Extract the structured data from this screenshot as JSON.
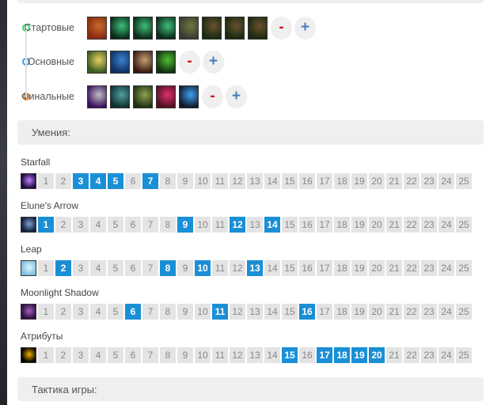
{
  "colors": {
    "accent": "#1a8fd6",
    "minus": "#d0151b",
    "plus": "#4a7cbf",
    "start": "#3fcf6a",
    "core": "#3a9be8",
    "final": "#f08a30"
  },
  "items": {
    "rows": [
      {
        "label": "Стартовые",
        "dot": "#3fcf6a",
        "icons": [
          [
            "#8a2a10",
            "#c56a2a"
          ],
          [
            "#0a2a1a",
            "#3fbf7a"
          ],
          [
            "#0a2a1a",
            "#3fbf7a"
          ],
          [
            "#0a2a1a",
            "#3fbf7a"
          ],
          [
            "#3a3a30",
            "#6a7a40"
          ],
          [
            "#1a2a10",
            "#6a5030"
          ],
          [
            "#1a2a10",
            "#6a5030"
          ],
          [
            "#1a2a10",
            "#6a5030"
          ]
        ]
      },
      {
        "label": "Основные",
        "dot": "#3a9be8",
        "icons": [
          [
            "#3a5a20",
            "#e8d060"
          ],
          [
            "#103060",
            "#3a80d0"
          ],
          [
            "#3a1a10",
            "#c0a070"
          ],
          [
            "#103010",
            "#50c030"
          ]
        ]
      },
      {
        "label": "Финальные",
        "dot": "#f08a30",
        "icons": [
          [
            "#3a1060",
            "#c0c0c0"
          ],
          [
            "#103030",
            "#50a0a0"
          ],
          [
            "#203010",
            "#90a050"
          ],
          [
            "#501020",
            "#e03070"
          ],
          [
            "#101830",
            "#40a0f0"
          ]
        ]
      }
    ],
    "minus_label": "-",
    "plus_label": "+"
  },
  "skills_header": "Умения:",
  "skills": [
    {
      "name": "Starfall",
      "icon": [
        "#200a40",
        "#c080ff"
      ],
      "levels": [
        3,
        4,
        5,
        7
      ]
    },
    {
      "name": "Elune's Arrow",
      "icon": [
        "#102040",
        "#80a0d0"
      ],
      "levels": [
        1,
        9,
        12,
        14
      ]
    },
    {
      "name": "Leap",
      "icon": [
        "#80c0e0",
        "#e0f4ff"
      ],
      "levels": [
        2,
        8,
        10,
        13
      ]
    },
    {
      "name": "Moonlight Shadow",
      "icon": [
        "#301040",
        "#a060c0"
      ],
      "levels": [
        6,
        11,
        16
      ]
    },
    {
      "name": "Атрибуты",
      "icon": [
        "#000000",
        "#f0b000"
      ],
      "levels": [
        15,
        17,
        18,
        19,
        20
      ]
    }
  ],
  "tactics_header": "Тактика игры:"
}
